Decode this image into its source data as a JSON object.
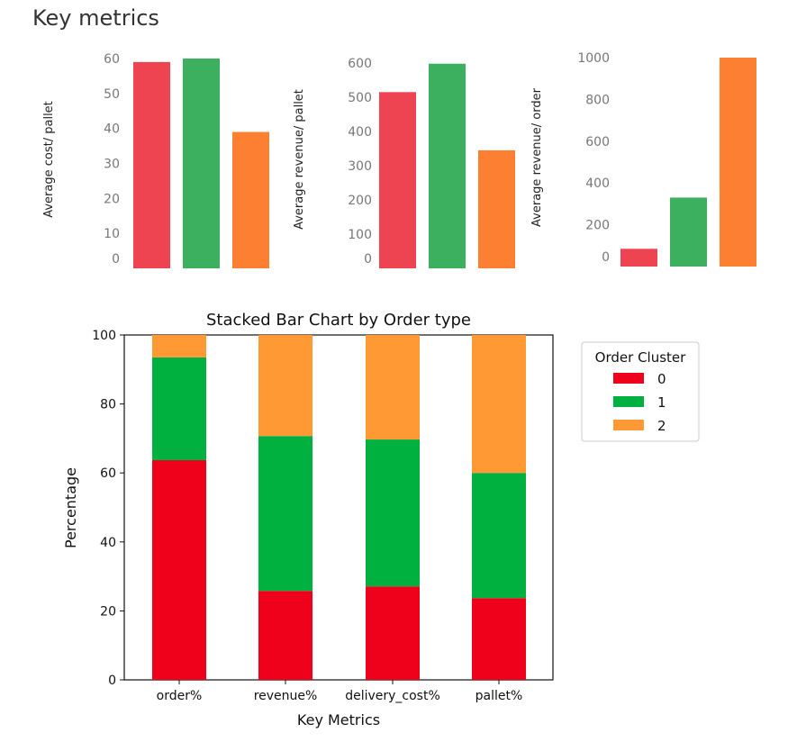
{
  "page": {
    "title": "Key metrics"
  },
  "chart_data": [
    {
      "type": "bar",
      "categories": [
        "0",
        "1",
        "2"
      ],
      "values": [
        59,
        60,
        39
      ],
      "colors": [
        "#ee4452",
        "#3cb05e",
        "#fd7f32"
      ],
      "ylabel": "Average cost/ pallet",
      "ylim": [
        0,
        60
      ],
      "yticks": [
        0,
        10,
        20,
        30,
        40,
        50,
        60
      ],
      "grid": false
    },
    {
      "type": "bar",
      "categories": [
        "0",
        "1",
        "2"
      ],
      "values": [
        515,
        598,
        345
      ],
      "colors": [
        "#ee4452",
        "#3cb05e",
        "#fd7f32"
      ],
      "ylabel": "Average revenue/ pallet",
      "ylim": [
        0,
        600
      ],
      "yticks": [
        0,
        100,
        200,
        300,
        400,
        500,
        600
      ],
      "grid": false
    },
    {
      "type": "bar",
      "categories": [
        "0",
        "1",
        "2"
      ],
      "values": [
        85,
        330,
        1000
      ],
      "colors": [
        "#ee4452",
        "#3cb05e",
        "#fd7f32"
      ],
      "ylabel": "Average revenue/ order",
      "ylim": [
        0,
        1000
      ],
      "yticks": [
        0,
        200,
        400,
        600,
        800,
        1000
      ],
      "grid": false
    },
    {
      "type": "bar",
      "stacked": true,
      "title": "Stacked Bar Chart by  Order type",
      "xlabel": "Key Metrics",
      "ylabel": "Percentage",
      "categories": [
        "order%",
        "revenue%",
        "delivery_cost%",
        "pallet%"
      ],
      "series": [
        {
          "name": "0",
          "color": "#ef001b",
          "values": [
            63.7,
            25.8,
            27.1,
            23.7
          ]
        },
        {
          "name": "1",
          "color": "#00b140",
          "values": [
            29.8,
            44.9,
            42.6,
            36.3
          ]
        },
        {
          "name": "2",
          "color": "#ff9933",
          "values": [
            6.5,
            29.3,
            30.3,
            40.0
          ]
        }
      ],
      "ylim": [
        0,
        100
      ],
      "yticks": [
        0,
        20,
        40,
        60,
        80,
        100
      ],
      "legend": {
        "title": "Order Cluster",
        "position": "outside-right"
      },
      "grid": false
    }
  ]
}
